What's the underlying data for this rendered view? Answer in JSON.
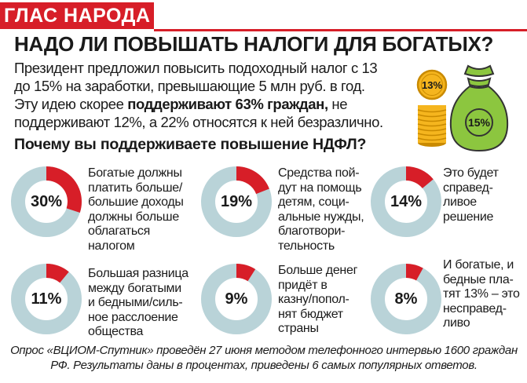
{
  "header": {
    "banner": "ГЛАС НАРОДА",
    "headline": "НАДО ЛИ ПОВЫШАТЬ НАЛОГИ ДЛЯ БОГАТЫХ?",
    "intro_lines": [
      "Президент предложил повысить подоходный налог с 13",
      "до 15% на заработки, превышающие 5 млн руб. в год.",
      {
        "pre": "Эту идею скорее ",
        "bold": "поддерживают 63% граждан,",
        "post": " не"
      },
      "поддерживают 12%, а 22% относятся к ней безразлично."
    ],
    "question": "Почему вы поддерживаете повышение НДФЛ?"
  },
  "illustration": {
    "coin_label": "13%",
    "bag_label": "15%",
    "colors": {
      "coin": "#f5b51e",
      "coin_dark": "#c98a00",
      "bag": "#8cc63f",
      "bag_dark": "#5b8a1e"
    }
  },
  "chart_data": {
    "type": "pie",
    "title": "Почему вы поддерживаете повышение НДФЛ?",
    "unit": "%",
    "colors": {
      "value": "#d71e28",
      "remainder": "#b9d3d8"
    },
    "slices": [
      {
        "value": 30,
        "label_lines": [
          "Богатые должны",
          "платить больше/",
          "большие доходы",
          "должны больше",
          "облагаться",
          "налогом"
        ]
      },
      {
        "value": 19,
        "label_lines": [
          "Средства пой-",
          "дут на помощь",
          "детям, соци-",
          "альные нужды,",
          "благотвори-",
          "тельность"
        ]
      },
      {
        "value": 14,
        "label_lines": [
          "Это будет",
          "справед-",
          "ливое",
          "решение"
        ]
      },
      {
        "value": 11,
        "label_lines": [
          "Большая разница",
          "между богатыми",
          "и бедными/силь-",
          "ное расслоение",
          "общества"
        ]
      },
      {
        "value": 9,
        "label_lines": [
          "Больше денег",
          "придёт в",
          "казну/попол-",
          "нят бюджет",
          "страны"
        ]
      },
      {
        "value": 8,
        "label_lines": [
          "И богатые, и",
          "бедные пла-",
          "тят 13% – это",
          "несправед-",
          "ливо"
        ]
      }
    ]
  },
  "footer": {
    "lines": [
      "Опрос «ВЦИОМ-Спутник» проведён 27 июня методом телефонного интервью 1600 граждан",
      "РФ. Результаты даны в процентах, приведены 6 самых популярных ответов."
    ]
  }
}
